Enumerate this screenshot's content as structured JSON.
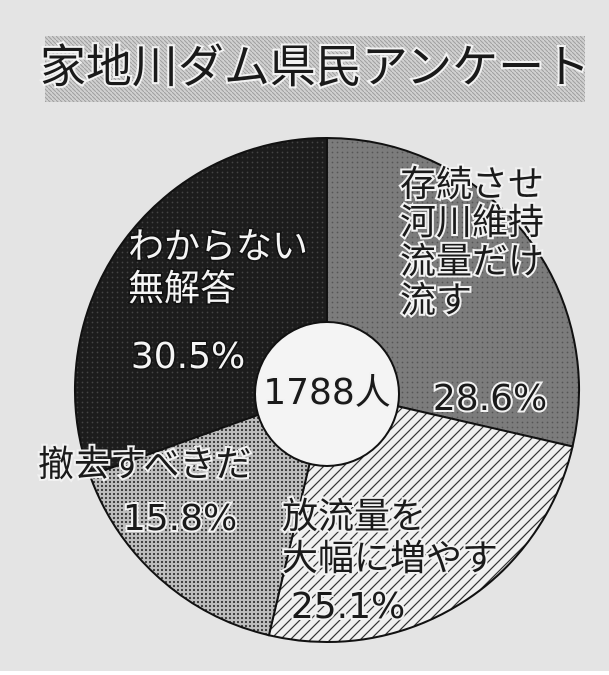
{
  "chart_data": {
    "type": "pie",
    "title": "家地川ダム県民アンケート",
    "center_label": "1788人",
    "categories": [
      [
        "存続させ",
        "河川維持",
        "流量だけ",
        "流す"
      ],
      [
        "放流量を",
        "大幅に増やす"
      ],
      [
        "撤去すべきだ"
      ],
      [
        "わからない",
        "無解答"
      ]
    ],
    "values": [
      28.6,
      25.1,
      15.8,
      30.5
    ],
    "value_labels": [
      "28.6%",
      "25.1%",
      "15.8%",
      "30.5%"
    ],
    "colors": [
      "#7c7c7c",
      "#f0f0f0",
      "#bdbdbd",
      "#1c1c1c"
    ]
  }
}
